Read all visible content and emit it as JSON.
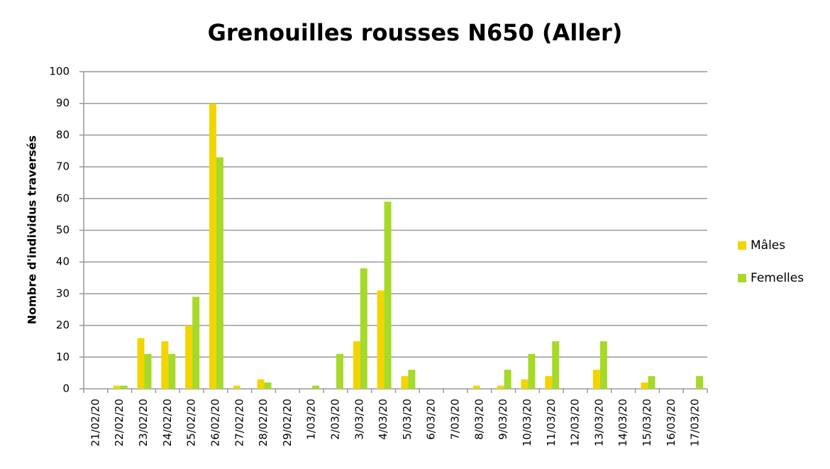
{
  "chart_data": {
    "type": "bar",
    "title": "Grenouilles rousses N650 (Aller)",
    "y_label": "Nombre d'individus traversés",
    "categories": [
      "21/02/20",
      "22/02/20",
      "23/02/20",
      "24/02/20",
      "25/02/20",
      "26/02/20",
      "27/02/20",
      "28/02/20",
      "29/02/20",
      "1/03/20",
      "2/03/20",
      "3/03/20",
      "4/03/20",
      "5/03/20",
      "6/03/20",
      "7/03/20",
      "8/03/20",
      "9/03/20",
      "10/03/20",
      "11/03/20",
      "12/03/20",
      "13/03/20",
      "14/03/20",
      "15/03/20",
      "16/03/20",
      "17/03/20"
    ],
    "series": [
      {
        "name": "Mâles",
        "color": "#f2d500",
        "values": [
          0,
          1,
          16,
          15,
          20,
          90,
          1,
          3,
          0,
          0,
          0,
          15,
          31,
          4,
          0,
          0,
          1,
          1,
          3,
          4,
          0,
          6,
          0,
          2,
          0,
          0
        ]
      },
      {
        "name": "Femelles",
        "color": "#a6d929",
        "values": [
          0,
          1,
          11,
          11,
          29,
          73,
          0,
          2,
          0,
          1,
          11,
          38,
          59,
          6,
          0,
          0,
          0,
          6,
          11,
          15,
          0,
          15,
          0,
          4,
          0,
          4
        ]
      }
    ],
    "ylim": [
      0,
      100
    ],
    "yticks": [
      0,
      10,
      20,
      30,
      40,
      50,
      60,
      70,
      80,
      90,
      100
    ],
    "grid": true,
    "legend": "right"
  }
}
